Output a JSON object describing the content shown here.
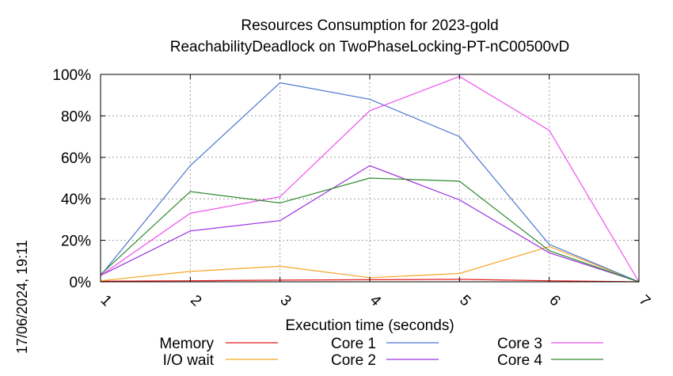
{
  "chart_data": {
    "type": "line",
    "title": "Resources Consumption for 2023-gold",
    "subtitle": "ReachabilityDeadlock on TwoPhaseLocking-PT-nC00500vD",
    "xlabel": "Execution time (seconds)",
    "ylabel": "",
    "x": [
      1,
      2,
      3,
      4,
      5,
      6,
      7
    ],
    "x_tick_labels": [
      "1",
      "2",
      "3",
      "4",
      "5",
      "6",
      "7"
    ],
    "y_tick_labels": [
      "0%",
      "20%",
      "40%",
      "60%",
      "80%",
      "100%"
    ],
    "xlim": [
      1,
      7
    ],
    "ylim": [
      0,
      100
    ],
    "grid": true,
    "legend_position": "bottom",
    "series": [
      {
        "name": "Memory",
        "color": "#e41a1c",
        "values": [
          0.3,
          0.5,
          0.8,
          1.0,
          1.2,
          0.5,
          0.0
        ]
      },
      {
        "name": "I/O wait",
        "color": "#f5a623",
        "values": [
          0.5,
          5,
          7.5,
          2,
          4,
          17,
          0
        ]
      },
      {
        "name": "Core 1",
        "color": "#4a76d0",
        "values": [
          3,
          56,
          96,
          88,
          70,
          18,
          0
        ]
      },
      {
        "name": "Core 2",
        "color": "#9b30e0",
        "values": [
          3,
          24.5,
          29.5,
          56,
          39.5,
          14,
          0
        ]
      },
      {
        "name": "Core 3",
        "color": "#f050f0",
        "values": [
          3,
          33,
          41,
          82.5,
          99,
          73,
          0
        ]
      },
      {
        "name": "Core 4",
        "color": "#2e8b2e",
        "values": [
          3.5,
          43.5,
          38,
          50,
          48.5,
          15,
          0
        ]
      }
    ]
  },
  "timestamp": "17/06/2024, 19:11"
}
